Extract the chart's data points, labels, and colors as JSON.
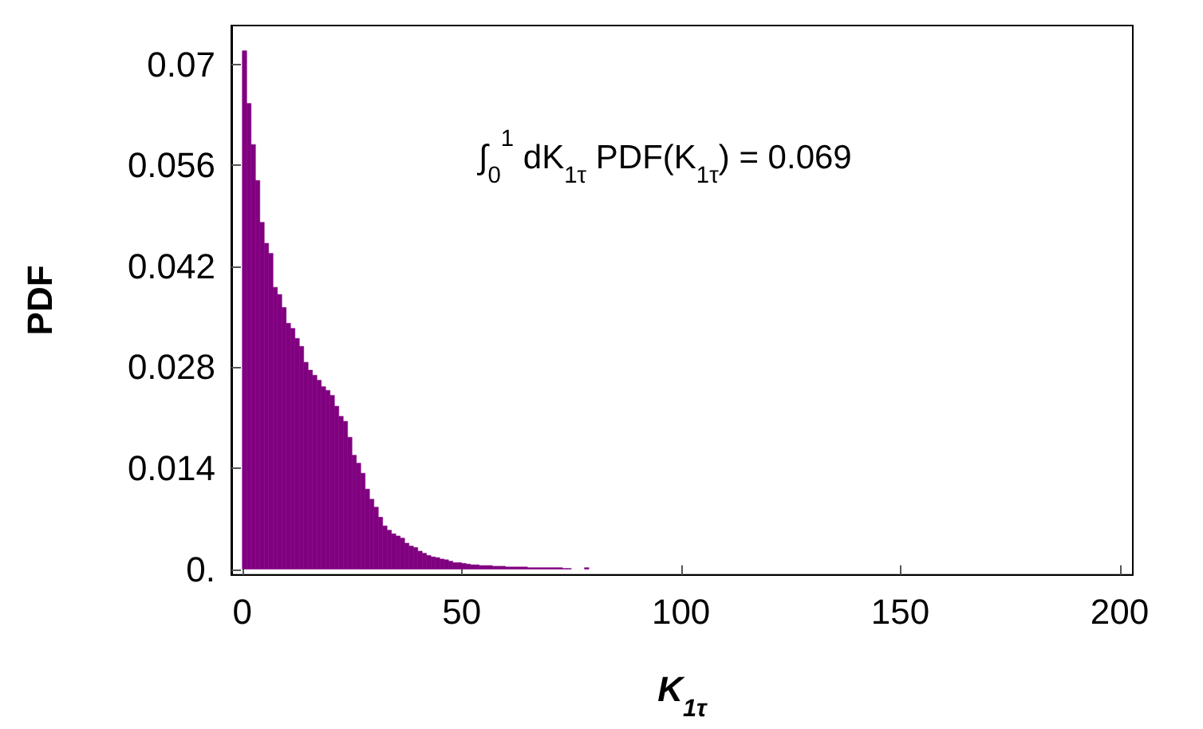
{
  "chart_data": {
    "type": "histogram",
    "xlabel": "K$_{1τ}$",
    "ylabel": "PDF",
    "color": "#800080",
    "bins": [
      0,
      1,
      2,
      3,
      4,
      5,
      6,
      7,
      8,
      9,
      10,
      11,
      12,
      13,
      14,
      15,
      16,
      17,
      18,
      19,
      20,
      21,
      22,
      23,
      24,
      25,
      26,
      27,
      28,
      29,
      30,
      31,
      32,
      33,
      34,
      35,
      36,
      37,
      38,
      39,
      40,
      41,
      42,
      43,
      44,
      45,
      46,
      47,
      48,
      49,
      50,
      51,
      52,
      53,
      54,
      55,
      56,
      57,
      58,
      59,
      60,
      61,
      62,
      63,
      64,
      65,
      66,
      67,
      68,
      69,
      70,
      71,
      72,
      73,
      74,
      75,
      76,
      77,
      78,
      79
    ],
    "values": [
      0.0719,
      0.0646,
      0.0589,
      0.0539,
      0.0481,
      0.0452,
      0.0438,
      0.0391,
      0.0381,
      0.0363,
      0.0341,
      0.0334,
      0.032,
      0.0309,
      0.0287,
      0.0276,
      0.0269,
      0.0262,
      0.0253,
      0.0248,
      0.0241,
      0.0226,
      0.0212,
      0.0205,
      0.0183,
      0.0158,
      0.0147,
      0.0133,
      0.0111,
      0.0097,
      0.0086,
      0.0072,
      0.006,
      0.0054,
      0.0049,
      0.0046,
      0.0043,
      0.0036,
      0.0032,
      0.003,
      0.0025,
      0.0022,
      0.0019,
      0.0017,
      0.0016,
      0.0014,
      0.0013,
      0.0011,
      0.0009,
      0.0009,
      0.0008,
      0.0007,
      0.0006,
      0.0006,
      0.0005,
      0.0005,
      0.0005,
      0.0004,
      0.0004,
      0.0004,
      0.0003,
      0.0003,
      0.0003,
      0.0003,
      0.0003,
      0.0002,
      0.0002,
      0.0002,
      0.0002,
      0.0002,
      0.0002,
      0.0002,
      0.0002,
      0.0001,
      0.0001,
      null,
      null,
      null,
      0.0002
    ],
    "xlim": [
      -2.5,
      203
    ],
    "ylim": [
      -0.0008,
      0.0754
    ],
    "xticks": [
      0,
      50,
      100,
      150,
      200
    ],
    "yticks": [
      {
        "value": 0,
        "label": "0."
      },
      0.014,
      0.028,
      0.042,
      0.056,
      0.07
    ],
    "annotations": [
      "∫$_{0}$$^{1}$ dK$_{1τ}$ PDF(K$_{1τ}$) = 0.069"
    ],
    "grid": false
  }
}
